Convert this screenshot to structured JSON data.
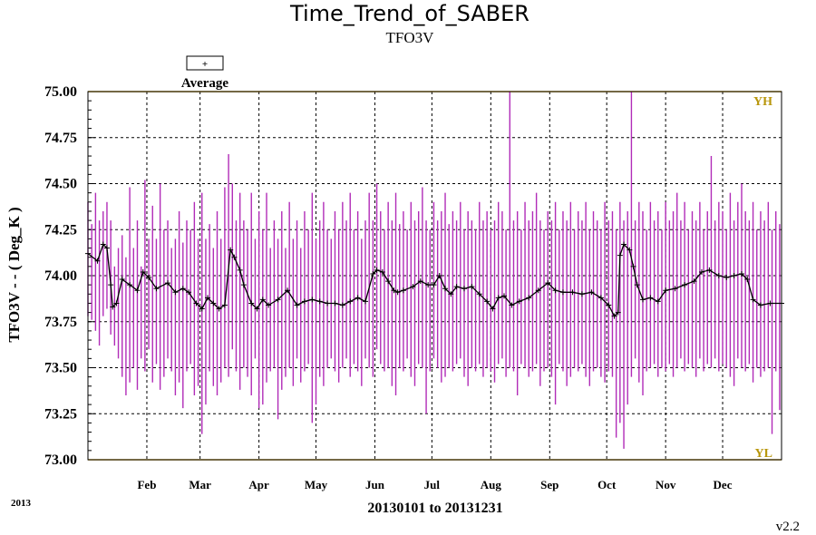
{
  "chart_data": {
    "type": "line",
    "title": "Time_Trend_of_SABER",
    "subtitle": "TFO3V",
    "xlabel": "20130101 to 20131231",
    "ylabel": "TFO3V  - - ( Deg_K )",
    "year_label": "2013",
    "version": "v2.2",
    "legend": {
      "label": "Average",
      "marker": "+",
      "placement": "top-left"
    },
    "ylim": [
      73.0,
      75.0
    ],
    "y_ticks": [
      "75.00",
      "74.75",
      "74.50",
      "74.25",
      "74.00",
      "73.75",
      "73.50",
      "73.25",
      "73.00"
    ],
    "x_range_days": [
      0,
      365
    ],
    "x_ticks": [
      {
        "label": "Feb",
        "day": 31
      },
      {
        "label": "Mar",
        "day": 59
      },
      {
        "label": "Apr",
        "day": 90
      },
      {
        "label": "May",
        "day": 120
      },
      {
        "label": "Jun",
        "day": 151
      },
      {
        "label": "Jul",
        "day": 181
      },
      {
        "label": "Aug",
        "day": 212
      },
      {
        "label": "Sep",
        "day": 243
      },
      {
        "label": "Oct",
        "day": 273
      },
      {
        "label": "Nov",
        "day": 304
      },
      {
        "label": "Dec",
        "day": 334
      }
    ],
    "reference_lines": [
      {
        "label": "YH",
        "value": 75.0
      },
      {
        "label": "YL",
        "value": 73.0
      }
    ],
    "colors": {
      "range": "#b12cb8",
      "average": "#000000",
      "limit": "#d4a017",
      "limit_text": "#b8960b"
    },
    "grid": true,
    "series": [
      {
        "name": "Average",
        "x": [
          0,
          5,
          8,
          10,
          12,
          13,
          15,
          18,
          22,
          26,
          29,
          32,
          36,
          42,
          46,
          50,
          53,
          57,
          60,
          63,
          66,
          69,
          72,
          75,
          77,
          80,
          82,
          86,
          89,
          92,
          95,
          100,
          105,
          110,
          114,
          118,
          122,
          126,
          130,
          134,
          138,
          142,
          146,
          150,
          152,
          155,
          158,
          161,
          163,
          166,
          171,
          175,
          179,
          182,
          185,
          188,
          191,
          194,
          198,
          202,
          206,
          210,
          213,
          216,
          219,
          223,
          227,
          232,
          237,
          242,
          246,
          250,
          255,
          260,
          265,
          270,
          274,
          277,
          279,
          280,
          282,
          285,
          287,
          289,
          292,
          296,
          300,
          304,
          309,
          314,
          319,
          323,
          327,
          332,
          336,
          340,
          344,
          347,
          350,
          354,
          359,
          365
        ],
        "y": [
          74.12,
          74.08,
          74.17,
          74.15,
          73.95,
          73.83,
          73.85,
          73.98,
          73.95,
          73.92,
          74.02,
          73.99,
          73.93,
          73.96,
          73.91,
          73.93,
          73.91,
          73.85,
          73.82,
          73.88,
          73.85,
          73.82,
          73.84,
          74.14,
          74.1,
          74.03,
          73.95,
          73.85,
          73.82,
          73.87,
          73.84,
          73.87,
          73.92,
          73.84,
          73.86,
          73.87,
          73.86,
          73.85,
          73.85,
          73.84,
          73.86,
          73.88,
          73.86,
          74.01,
          74.03,
          74.02,
          73.97,
          73.92,
          73.91,
          73.92,
          73.94,
          73.97,
          73.95,
          73.95,
          74.0,
          73.93,
          73.9,
          73.94,
          73.93,
          73.94,
          73.9,
          73.86,
          73.82,
          73.88,
          73.89,
          73.84,
          73.86,
          73.88,
          73.92,
          73.96,
          73.92,
          73.91,
          73.91,
          73.9,
          73.91,
          73.88,
          73.84,
          73.78,
          73.8,
          74.11,
          74.17,
          74.14,
          74.05,
          73.95,
          73.87,
          73.88,
          73.86,
          73.92,
          73.93,
          73.95,
          73.97,
          74.02,
          74.03,
          74.0,
          73.99,
          74.0,
          74.01,
          73.98,
          73.87,
          73.84,
          73.85,
          73.85
        ]
      },
      {
        "name": "",
        "x": [
          0,
          2,
          4,
          6,
          8,
          10,
          12,
          14,
          16,
          18,
          20,
          22,
          24,
          26,
          28,
          30,
          32,
          34,
          36,
          38,
          40,
          42,
          44,
          46,
          48,
          50,
          52,
          54,
          56,
          58,
          60,
          62,
          64,
          66,
          68,
          70,
          72,
          74,
          76,
          78,
          80,
          82,
          84,
          86,
          88,
          90,
          92,
          94,
          96,
          98,
          100,
          102,
          104,
          106,
          108,
          110,
          112,
          114,
          116,
          118,
          120,
          122,
          124,
          126,
          128,
          130,
          132,
          134,
          136,
          138,
          140,
          142,
          144,
          146,
          148,
          150,
          152,
          154,
          156,
          158,
          160,
          162,
          164,
          166,
          168,
          170,
          172,
          174,
          176,
          178,
          180,
          182,
          184,
          186,
          188,
          190,
          192,
          194,
          196,
          198,
          200,
          202,
          204,
          206,
          208,
          210,
          212,
          214,
          216,
          218,
          220,
          222,
          224,
          226,
          228,
          230,
          232,
          234,
          236,
          238,
          240,
          242,
          244,
          246,
          248,
          250,
          252,
          254,
          256,
          258,
          260,
          262,
          264,
          266,
          268,
          270,
          272,
          274,
          276,
          278,
          280,
          282,
          284,
          286,
          288,
          290,
          292,
          294,
          296,
          298,
          300,
          302,
          304,
          306,
          308,
          310,
          312,
          314,
          316,
          318,
          320,
          322,
          324,
          326,
          328,
          330,
          332,
          334,
          336,
          338,
          340,
          342,
          344,
          346,
          348,
          350,
          352,
          354,
          356,
          358,
          360,
          362,
          364
        ],
        "y_min": [
          73.78,
          73.76,
          73.7,
          73.62,
          73.78,
          73.82,
          73.68,
          73.62,
          73.55,
          73.45,
          73.35,
          73.42,
          73.5,
          73.38,
          73.55,
          73.48,
          73.6,
          73.42,
          73.52,
          73.38,
          73.45,
          73.55,
          73.48,
          73.35,
          73.42,
          73.28,
          73.48,
          73.52,
          73.35,
          73.4,
          73.14,
          73.3,
          73.48,
          73.4,
          73.35,
          73.42,
          73.5,
          73.45,
          73.6,
          73.48,
          73.38,
          73.5,
          73.45,
          73.35,
          73.55,
          73.28,
          73.3,
          73.42,
          73.48,
          73.5,
          73.22,
          73.38,
          73.45,
          73.5,
          73.4,
          73.55,
          73.42,
          73.48,
          73.52,
          73.2,
          73.3,
          73.45,
          73.4,
          73.5,
          73.55,
          73.48,
          73.42,
          73.5,
          73.55,
          73.45,
          73.52,
          73.48,
          73.4,
          73.55,
          73.5,
          73.45,
          73.6,
          73.52,
          73.48,
          73.5,
          73.4,
          73.35,
          73.5,
          73.48,
          73.55,
          73.45,
          73.4,
          73.52,
          73.5,
          73.25,
          73.48,
          73.55,
          73.5,
          73.42,
          73.45,
          73.5,
          73.48,
          73.52,
          73.55,
          73.45,
          73.4,
          73.5,
          73.48,
          73.52,
          73.45,
          73.5,
          73.48,
          73.42,
          73.52,
          73.55,
          73.45,
          73.5,
          73.48,
          73.35,
          73.52,
          73.5,
          73.45,
          73.48,
          73.52,
          73.4,
          73.48,
          73.5,
          73.45,
          73.3,
          73.52,
          73.48,
          73.4,
          73.45,
          73.5,
          73.48,
          73.52,
          73.45,
          73.4,
          73.48,
          73.5,
          73.45,
          73.42,
          73.48,
          73.45,
          73.12,
          73.2,
          73.06,
          73.3,
          73.45,
          73.55,
          73.42,
          73.35,
          73.48,
          73.5,
          73.52,
          73.45,
          73.5,
          73.48,
          73.52,
          73.45,
          73.5,
          73.55,
          73.48,
          73.52,
          73.5,
          73.45,
          73.55,
          73.48,
          73.52,
          73.5,
          73.55,
          73.48,
          73.52,
          73.5,
          73.45,
          73.4,
          73.55,
          73.5,
          73.48,
          73.52,
          73.42,
          73.5,
          73.45,
          73.48,
          73.5,
          73.14,
          73.48,
          73.27
        ],
        "y_max": [
          74.4,
          74.28,
          74.45,
          74.3,
          74.35,
          74.4,
          74.3,
          74.05,
          74.15,
          74.22,
          74.1,
          74.48,
          74.15,
          74.3,
          74.05,
          74.52,
          74.2,
          74.38,
          74.2,
          74.5,
          74.25,
          74.3,
          74.15,
          74.2,
          74.35,
          74.18,
          74.3,
          74.25,
          74.4,
          74.2,
          74.45,
          74.2,
          74.28,
          74.15,
          74.35,
          74.2,
          74.48,
          74.66,
          74.5,
          74.3,
          74.45,
          74.3,
          74.25,
          74.45,
          74.2,
          74.35,
          74.25,
          74.45,
          74.15,
          74.3,
          74.2,
          74.35,
          74.15,
          74.4,
          74.2,
          74.3,
          74.15,
          74.35,
          74.25,
          74.45,
          74.2,
          74.3,
          74.4,
          74.25,
          74.2,
          74.35,
          74.25,
          74.4,
          74.3,
          74.45,
          74.25,
          74.35,
          74.2,
          74.3,
          74.45,
          74.3,
          74.5,
          74.35,
          74.25,
          74.4,
          74.3,
          74.45,
          74.28,
          74.35,
          74.25,
          74.4,
          74.3,
          74.35,
          74.48,
          74.3,
          74.25,
          74.4,
          74.3,
          74.35,
          74.45,
          74.28,
          74.35,
          74.3,
          74.4,
          74.25,
          74.35,
          74.3,
          74.25,
          74.4,
          74.3,
          74.35,
          74.25,
          74.3,
          74.4,
          74.35,
          74.25,
          75.0,
          74.3,
          74.35,
          74.25,
          74.4,
          74.3,
          74.35,
          74.45,
          74.3,
          74.25,
          74.35,
          74.3,
          74.4,
          74.25,
          74.35,
          74.3,
          74.4,
          74.25,
          74.35,
          74.3,
          74.4,
          74.25,
          74.35,
          74.3,
          74.25,
          74.4,
          74.3,
          74.35,
          74.25,
          74.4,
          74.3,
          74.35,
          75.0,
          74.3,
          74.4,
          74.35,
          74.25,
          74.4,
          74.3,
          74.35,
          74.25,
          74.4,
          74.3,
          74.35,
          74.45,
          74.3,
          74.4,
          74.25,
          74.35,
          74.3,
          74.4,
          74.25,
          74.35,
          74.65,
          74.3,
          74.4,
          74.35,
          74.25,
          74.45,
          74.3,
          74.4,
          74.5,
          74.35,
          74.3,
          74.4,
          74.25,
          74.35,
          74.3,
          74.4,
          74.25,
          74.35,
          74.28,
          74.25
        ]
      }
    ]
  }
}
